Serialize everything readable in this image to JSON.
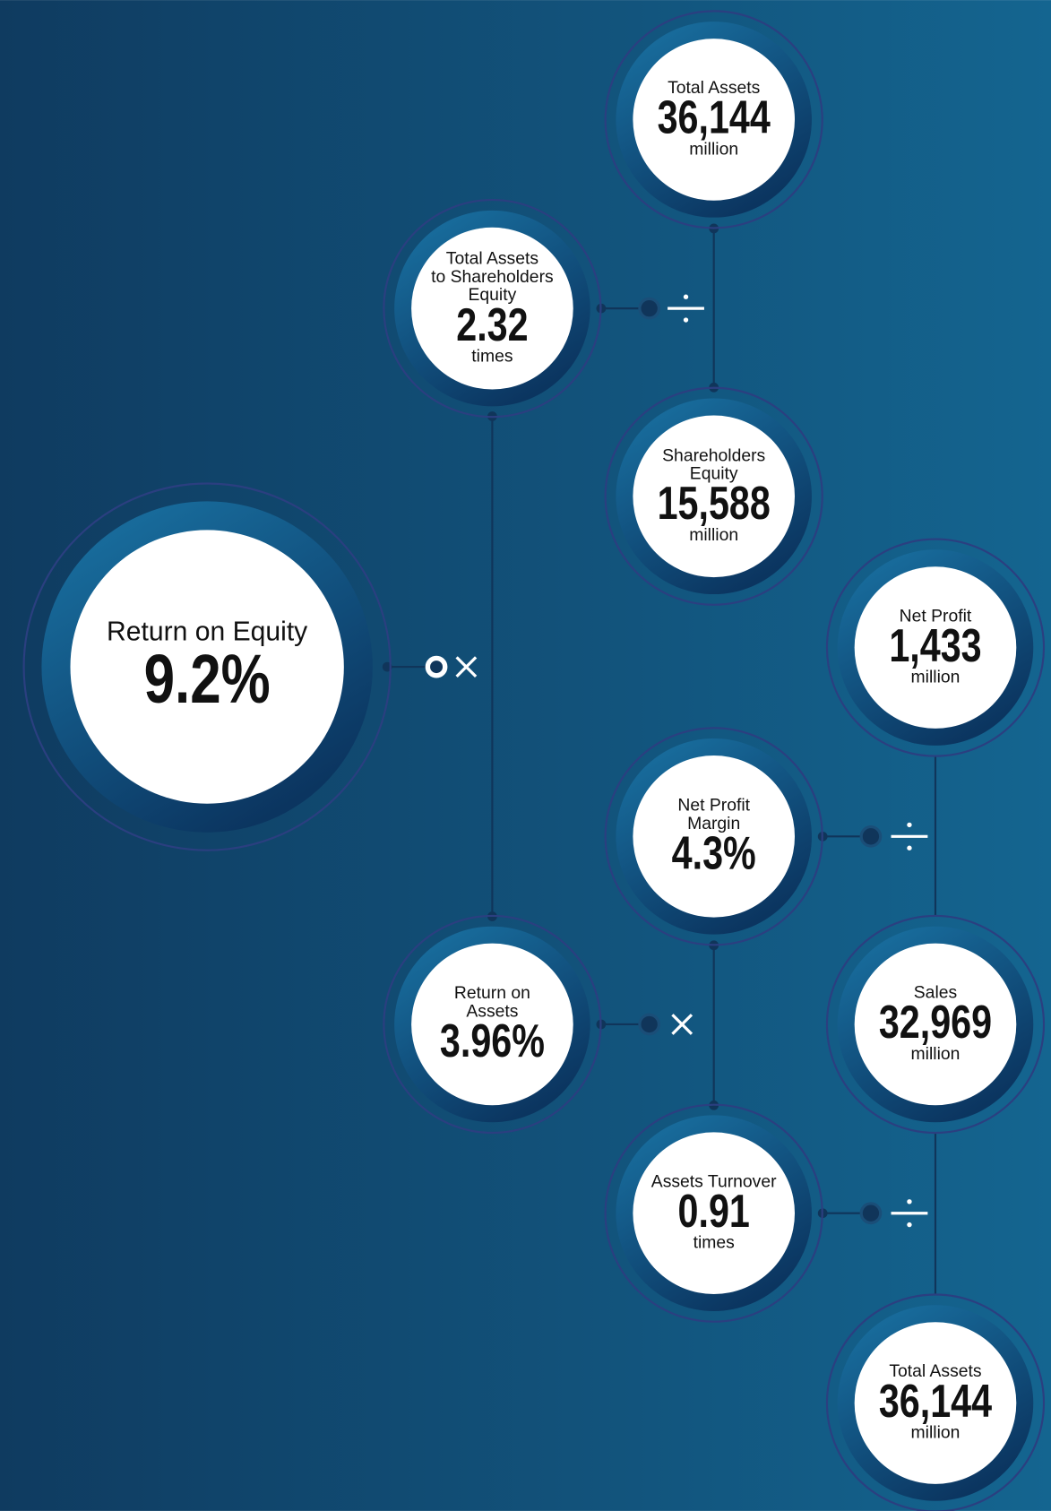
{
  "nodes": [
    {
      "label_lines": [
        "Return on Equity"
      ],
      "value": "9.2%"
    },
    {
      "label_lines": [
        "Total Assets"
      ],
      "value": "36,144",
      "unit": "million"
    },
    {
      "label_lines": [
        "Total Assets",
        "to Shareholders",
        "Equity"
      ],
      "value": "2.32",
      "unit": "times"
    },
    {
      "label_lines": [
        "Shareholders",
        "Equity"
      ],
      "value": "15,588",
      "unit": "million"
    },
    {
      "label_lines": [
        "Net Profit"
      ],
      "value": "1,433",
      "unit": "million"
    },
    {
      "label_lines": [
        "Net Profit",
        "Margin"
      ],
      "value": "4.3%"
    },
    {
      "label_lines": [
        "Return on",
        "Assets"
      ],
      "value": "3.96%"
    },
    {
      "label_lines": [
        "Sales"
      ],
      "value": "32,969",
      "unit": "million"
    },
    {
      "label_lines": [
        "Assets Turnover"
      ],
      "value": "0.91",
      "unit": "times"
    },
    {
      "label_lines": [
        "Total Assets"
      ],
      "value": "36,144",
      "unit": "million"
    }
  ]
}
